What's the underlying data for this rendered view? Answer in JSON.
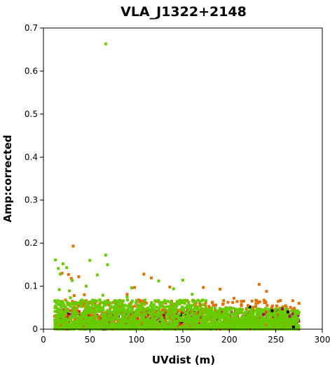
{
  "chart_data": {
    "type": "scatter",
    "title": "VLA_J1322+2148",
    "xlabel": "UVdist (m)",
    "ylabel": "Amp:corrected",
    "xlim": [
      0,
      300
    ],
    "ylim": [
      0,
      0.7
    ],
    "x_ticks": [
      "0",
      "50",
      "100",
      "150",
      "200",
      "250",
      "300"
    ],
    "y_ticks": [
      "0",
      "0.1",
      "0.2",
      "0.3",
      "0.4",
      "0.5",
      "0.6",
      "0.7"
    ],
    "grid": false,
    "legend": "none",
    "colors": {
      "green": "#66cc00",
      "orange": "#e07000",
      "red": "#e0002a",
      "magenta": "#b0006a",
      "black": "#000000"
    },
    "series": [
      {
        "color": "green",
        "points": [
          [
            67,
            0.663
          ],
          [
            13,
            0.161
          ],
          [
            67,
            0.172
          ],
          [
            21,
            0.152
          ],
          [
            50,
            0.16
          ],
          [
            69,
            0.15
          ],
          [
            16,
            0.141
          ],
          [
            25,
            0.143
          ],
          [
            58,
            0.126
          ],
          [
            31,
            0.113
          ],
          [
            150,
            0.114
          ],
          [
            124,
            0.112
          ],
          [
            18,
            0.128
          ],
          [
            95,
            0.096
          ],
          [
            17,
            0.092
          ],
          [
            28,
            0.089
          ],
          [
            46,
            0.1
          ],
          [
            140,
            0.094
          ],
          [
            160,
            0.081
          ],
          [
            29,
            0.073
          ],
          [
            64,
            0.079
          ],
          [
            230,
            0.046
          ],
          [
            90,
            0.075
          ]
        ],
        "dense": [
          {
            "x": [
              12,
              175
            ],
            "y": [
              0.0,
              0.068
            ]
          },
          {
            "x": [
              175,
              275
            ],
            "y": [
              0.0,
              0.05
            ]
          }
        ]
      },
      {
        "color": "orange",
        "points": [
          [
            32,
            0.193
          ],
          [
            20,
            0.13
          ],
          [
            38,
            0.122
          ],
          [
            27,
            0.127
          ],
          [
            108,
            0.128
          ],
          [
            116,
            0.119
          ],
          [
            30,
            0.118
          ],
          [
            98,
            0.097
          ],
          [
            172,
            0.097
          ],
          [
            232,
            0.104
          ],
          [
            240,
            0.088
          ],
          [
            136,
            0.098
          ],
          [
            190,
            0.093
          ],
          [
            44,
            0.08
          ],
          [
            33,
            0.078
          ],
          [
            205,
            0.072
          ],
          [
            220,
            0.055
          ],
          [
            275,
            0.06
          ],
          [
            90,
            0.081
          ]
        ],
        "dense": [
          {
            "x": [
              12,
              275
            ],
            "y": [
              0.0,
              0.068
            ]
          }
        ]
      },
      {
        "color": "red",
        "points": [],
        "dense": [
          {
            "x": [
              12,
              275
            ],
            "y": [
              0.0,
              0.045
            ]
          }
        ]
      },
      {
        "color": "magenta",
        "points": [
          [
            237,
            0.034
          ],
          [
            257,
            0.047
          ],
          [
            265,
            0.03
          ]
        ],
        "dense": [
          {
            "x": [
              12,
              275
            ],
            "y": [
              0.0,
              0.04
            ]
          }
        ]
      },
      {
        "color": "black",
        "points": [
          [
            222,
            0.052
          ],
          [
            246,
            0.043
          ],
          [
            263,
            0.04
          ],
          [
            269,
            0.005
          ]
        ],
        "dense": [
          {
            "x": [
              12,
              275
            ],
            "y": [
              0.0,
              0.042
            ]
          }
        ]
      }
    ]
  }
}
